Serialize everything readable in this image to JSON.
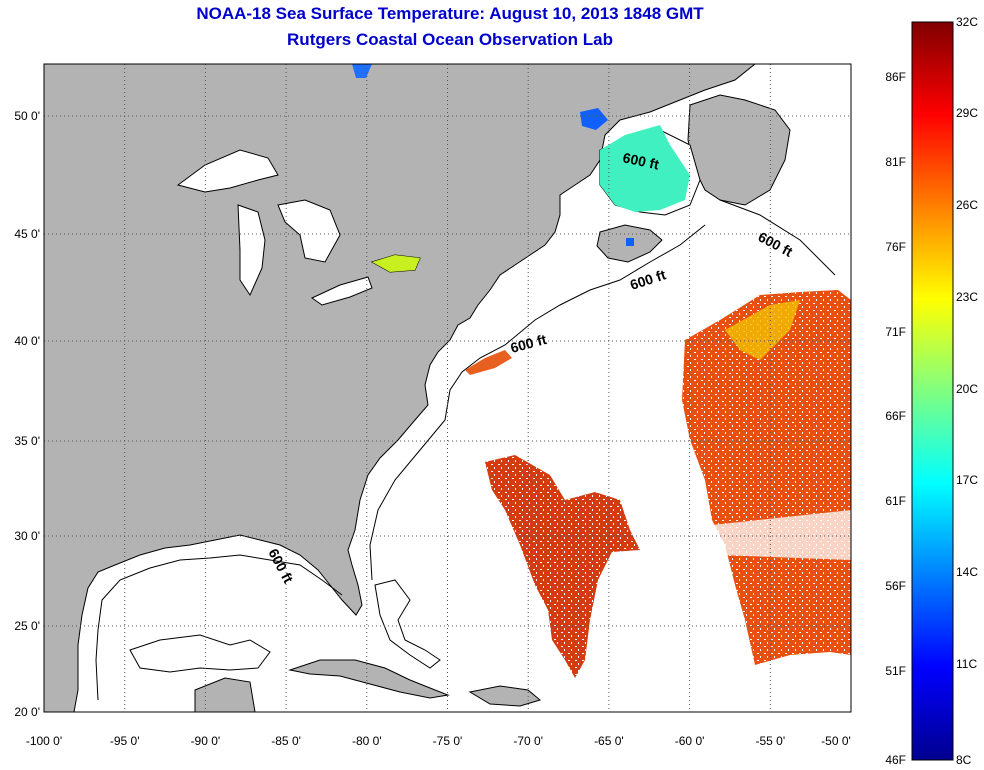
{
  "header": {
    "title": "NOAA-18 Sea Surface Temperature:  August 10, 2013 1848 GMT",
    "subtitle": "Rutgers Coastal Ocean Observation Lab"
  },
  "map": {
    "lon_range": [
      -100,
      -50
    ],
    "lat_range": [
      20,
      52
    ],
    "x_ticks": [
      "-100 0'",
      "-95 0'",
      "-90 0'",
      "-85 0'",
      "-80 0'",
      "-75 0'",
      "-70 0'",
      "-65 0'",
      "-60 0'",
      "-55 0'",
      "-50 0'"
    ],
    "y_ticks": [
      "50 0'",
      "45 0'",
      "40 0'",
      "35 0'",
      "30 0'",
      "25 0'",
      "20 0'"
    ],
    "grid": "dotted",
    "land_color": "#b3b3b3",
    "isobath_label": "600 ft",
    "isobath_labels": [
      "600 ft",
      "600 ft",
      "600 ft",
      "600 ft",
      "600 ft"
    ]
  },
  "colorbar": {
    "min_c": 8,
    "max_c": 32,
    "celsius_labels": [
      "32C",
      "29C",
      "26C",
      "23C",
      "20C",
      "17C",
      "14C",
      "11C",
      "8C"
    ],
    "fahrenheit_labels": [
      "86F",
      "81F",
      "76F",
      "71F",
      "66F",
      "61F",
      "56F",
      "51F",
      "46F"
    ],
    "colors": [
      "#00008f",
      "#0000ff",
      "#0080ff",
      "#00ffff",
      "#80ff80",
      "#ffff00",
      "#ff8000",
      "#ff0000",
      "#800000"
    ]
  }
}
